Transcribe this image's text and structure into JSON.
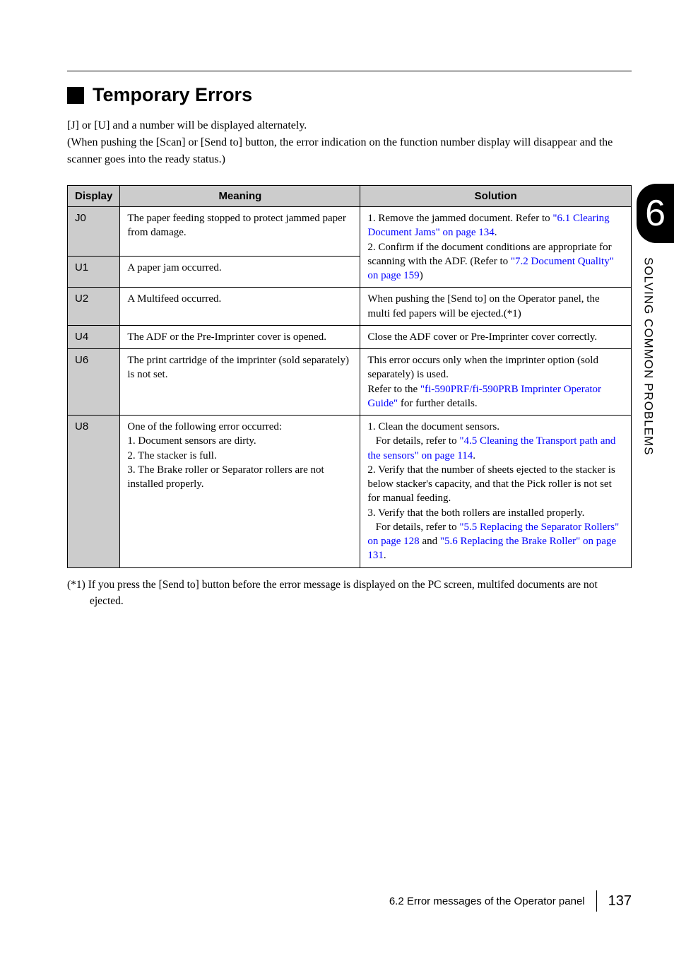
{
  "section": {
    "title": "Temporary Errors"
  },
  "intro": {
    "line1": "[J] or [U] and a number will be displayed alternately.",
    "line2": "(When pushing the [Scan] or [Send to] button, the error indication on the function number display will disappear and the scanner goes into the ready status.)"
  },
  "table": {
    "headers": {
      "display": "Display",
      "meaning": "Meaning",
      "solution": "Solution"
    },
    "rows": {
      "j0": {
        "display": "J0",
        "meaning": "The paper feeding stopped to protect jammed paper from damage.",
        "solution_p1": "1. Remove the jammed document. Refer to ",
        "solution_link1": "\"6.1 Clearing Document Jams\" on page 134",
        "solution_p1_end": "."
      },
      "u1": {
        "display": "U1",
        "meaning": "A paper jam occurred.",
        "solution_p2": "2. Confirm if the document conditions are appropriate for scanning with the ADF. (Refer to ",
        "solution_link2": "\"7.2 Document Quality\" on page 159",
        "solution_p2_end": ")"
      },
      "u2": {
        "display": "U2",
        "meaning": "A Multifeed occurred.",
        "solution": "When pushing the [Send to] on the Operator panel, the multi fed papers will be ejected.(*1)"
      },
      "u4": {
        "display": "U4",
        "meaning": "The ADF or the Pre-Imprinter cover is opened.",
        "solution": "Close the ADF cover or Pre-Imprinter cover correctly."
      },
      "u6": {
        "display": "U6",
        "meaning": "The print cartridge of the imprinter (sold separately) is not set.",
        "solution_p1": "This error occurs only when the imprinter option (sold separately) is used.",
        "solution_p2": "Refer to the ",
        "solution_link": "\"fi-590PRF/fi-590PRB Imprinter Operator Guide\"",
        "solution_p2_end": " for further details."
      },
      "u8": {
        "display": "U8",
        "meaning_l1": "One of the following error occurred:",
        "meaning_l2": "1. Document sensors are dirty.",
        "meaning_l3": "2. The stacker is full.",
        "meaning_l4": "3. The Brake roller or Separator rollers are not installed properly.",
        "solution_l1": "1. Clean the document sensors.",
        "solution_l2a": "For details, refer to ",
        "solution_link1": "\"4.5 Cleaning the Transport path and the sensors\" on page 114",
        "solution_l2b": ".",
        "solution_l3": "2. Verify that the number of sheets ejected to the stacker is below stacker's capacity, and that the Pick roller is not set for manual feeding.",
        "solution_l4": "3. Verify that the both rollers are installed properly.",
        "solution_l5a": "For details, refer to ",
        "solution_link2": "\"5.5 Replacing the Separator Rollers\" on page 128",
        "solution_l5b": " and ",
        "solution_link3": "\"5.6 Replacing the Brake Roller\" on page 131",
        "solution_l5c": "."
      }
    }
  },
  "footnote": "(*1) If you press the [Send to] button before the error message is displayed on the PC screen, multifed documents are not ejected.",
  "sidetab": {
    "number": "6",
    "text": "SOLVING COMMON PROBLEMS"
  },
  "footer": {
    "text": "6.2 Error messages of the Operator panel",
    "page": "137"
  }
}
